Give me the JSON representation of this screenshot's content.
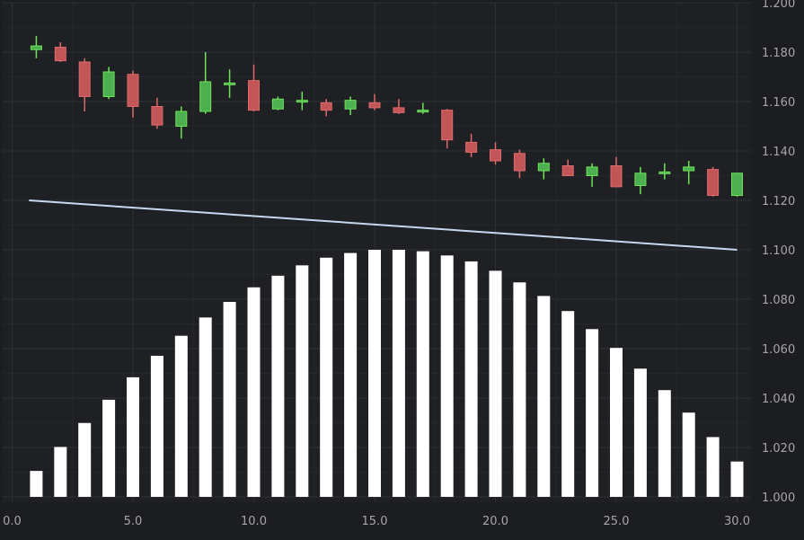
{
  "colors": {
    "background": "#1c1d21",
    "plot_background": "#1f2024",
    "grid_major": "#2e3036",
    "grid_minor": "#25272b",
    "tick_label": "#a6a6a6",
    "candle_up_fill": "#4caf50",
    "candle_up_stroke": "#6fe25a",
    "candle_down_fill": "#c25557",
    "candle_down_stroke": "#e06a6a",
    "bar_fill": "#ffffff",
    "line_stroke": "#c5d8ee"
  },
  "chart_data": {
    "type": "bar",
    "title": "",
    "xlabel": "",
    "ylabel": "",
    "xlim": [
      0,
      30.5
    ],
    "ylim": [
      1.0,
      1.2
    ],
    "x_ticks": [
      {
        "value": 0,
        "label": "0.0"
      },
      {
        "value": 5,
        "label": "5.0"
      },
      {
        "value": 10,
        "label": "10.0"
      },
      {
        "value": 15,
        "label": "15.0"
      },
      {
        "value": 20,
        "label": "20.0"
      },
      {
        "value": 25,
        "label": "25.0"
      },
      {
        "value": 30,
        "label": "30.0"
      }
    ],
    "y_ticks": [
      {
        "value": 1.0,
        "label": "1.000"
      },
      {
        "value": 1.02,
        "label": "1.020"
      },
      {
        "value": 1.04,
        "label": "1.040"
      },
      {
        "value": 1.06,
        "label": "1.060"
      },
      {
        "value": 1.08,
        "label": "1.080"
      },
      {
        "value": 1.1,
        "label": "1.100"
      },
      {
        "value": 1.12,
        "label": "1.120"
      },
      {
        "value": 1.14,
        "label": "1.140"
      },
      {
        "value": 1.16,
        "label": "1.160"
      },
      {
        "value": 1.18,
        "label": "1.180"
      },
      {
        "value": 1.2,
        "label": "1.200"
      }
    ],
    "y_axis_position": "right",
    "grid": true,
    "series": [
      {
        "type": "bar",
        "x": [
          1,
          2,
          3,
          4,
          5,
          6,
          7,
          8,
          9,
          10,
          11,
          12,
          13,
          14,
          15,
          16,
          17,
          18,
          19,
          20,
          21,
          22,
          23,
          24,
          25,
          26,
          27,
          28,
          29,
          30
        ],
        "values": [
          1.0105,
          1.0202,
          1.0299,
          1.0393,
          1.0484,
          1.0571,
          1.0652,
          1.0726,
          1.0789,
          1.0848,
          1.0895,
          1.0937,
          1.0968,
          1.0987,
          1.1,
          1.1,
          1.0994,
          1.0977,
          1.0953,
          1.0915,
          1.0868,
          1.0813,
          1.0752,
          1.0679,
          1.0603,
          1.0519,
          1.0432,
          1.0341,
          1.0242,
          1.0143
        ]
      },
      {
        "type": "line",
        "x": [
          0.7,
          30
        ],
        "values": [
          1.12,
          1.1
        ]
      },
      {
        "type": "candlestick",
        "x": [
          1,
          2,
          3,
          4,
          5,
          6,
          7,
          8,
          9,
          10,
          11,
          12,
          13,
          14,
          15,
          16,
          17,
          18,
          19,
          20,
          21,
          22,
          23,
          24,
          25,
          26,
          27,
          28,
          29,
          30
        ],
        "open": [
          1.181,
          1.182,
          1.176,
          1.162,
          1.171,
          1.158,
          1.15,
          1.156,
          1.1675,
          1.1685,
          1.157,
          1.1605,
          1.1595,
          1.157,
          1.1595,
          1.1575,
          1.156,
          1.1565,
          1.1435,
          1.1405,
          1.139,
          1.132,
          1.134,
          1.13,
          1.134,
          1.126,
          1.1315,
          1.132,
          1.1325,
          1.122
        ],
        "high": [
          1.1865,
          1.184,
          1.1775,
          1.174,
          1.1725,
          1.1615,
          1.158,
          1.18,
          1.173,
          1.175,
          1.162,
          1.164,
          1.161,
          1.162,
          1.163,
          1.161,
          1.1595,
          1.157,
          1.147,
          1.1435,
          1.1405,
          1.137,
          1.1365,
          1.135,
          1.1375,
          1.1335,
          1.135,
          1.136,
          1.1335,
          1.131
        ],
        "low": [
          1.1775,
          1.176,
          1.156,
          1.161,
          1.1535,
          1.149,
          1.145,
          1.155,
          1.1615,
          1.156,
          1.1565,
          1.1565,
          1.154,
          1.1545,
          1.1565,
          1.155,
          1.155,
          1.141,
          1.1375,
          1.1345,
          1.129,
          1.1285,
          1.13,
          1.1255,
          1.1255,
          1.1225,
          1.1285,
          1.1265,
          1.1215,
          1.1215
        ],
        "close": [
          1.1825,
          1.1765,
          1.162,
          1.172,
          1.158,
          1.1505,
          1.156,
          1.168,
          1.1675,
          1.1565,
          1.161,
          1.1605,
          1.1565,
          1.1605,
          1.1575,
          1.1555,
          1.1565,
          1.1445,
          1.1395,
          1.136,
          1.132,
          1.135,
          1.13,
          1.1335,
          1.1255,
          1.131,
          1.1315,
          1.1335,
          1.122,
          1.131
        ]
      }
    ]
  }
}
